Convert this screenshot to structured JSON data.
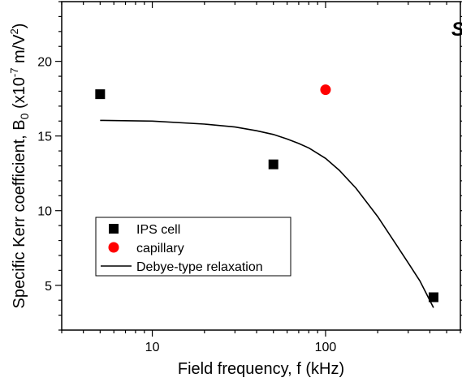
{
  "chart_data": {
    "type": "scatter",
    "xlabel": "Field frequency, f (kHz)",
    "ylabel": {
      "main": "Specific Kerr coefficient, B",
      "subscript": "0",
      "unit_prefix": " (x10",
      "exponent": "-7",
      "unit_suffix": " m/V",
      "unit_exponent": "2",
      "close": ")"
    },
    "x_scale": "log",
    "xlim": [
      3,
      600
    ],
    "ylim": [
      2,
      24
    ],
    "x_ticks": [
      10,
      100
    ],
    "x_tick_labels": [
      "10",
      "100"
    ],
    "y_ticks": [
      5,
      10,
      15,
      20
    ],
    "y_tick_labels": [
      "5",
      "10",
      "15",
      "20"
    ],
    "grid": false,
    "corner_label": "S",
    "legend_position": "bottom-left",
    "series": [
      {
        "name": "IPS cell",
        "kind": "points",
        "marker": "square",
        "color": "#000000",
        "x": [
          5,
          50,
          420
        ],
        "y": [
          17.8,
          13.1,
          4.2
        ]
      },
      {
        "name": "capillary",
        "kind": "points",
        "marker": "circle",
        "color": "#ff0000",
        "x": [
          100
        ],
        "y": [
          18.1
        ]
      },
      {
        "name": "Debye-type relaxation",
        "kind": "line",
        "color": "#000000",
        "x": [
          5,
          10,
          20,
          30,
          40,
          50,
          60,
          70,
          80,
          100,
          120,
          150,
          200,
          250,
          300,
          350,
          420
        ],
        "y": [
          16.05,
          16.0,
          15.8,
          15.6,
          15.35,
          15.1,
          14.8,
          14.5,
          14.2,
          13.5,
          12.7,
          11.5,
          9.6,
          7.9,
          6.5,
          5.3,
          3.5
        ]
      }
    ]
  }
}
